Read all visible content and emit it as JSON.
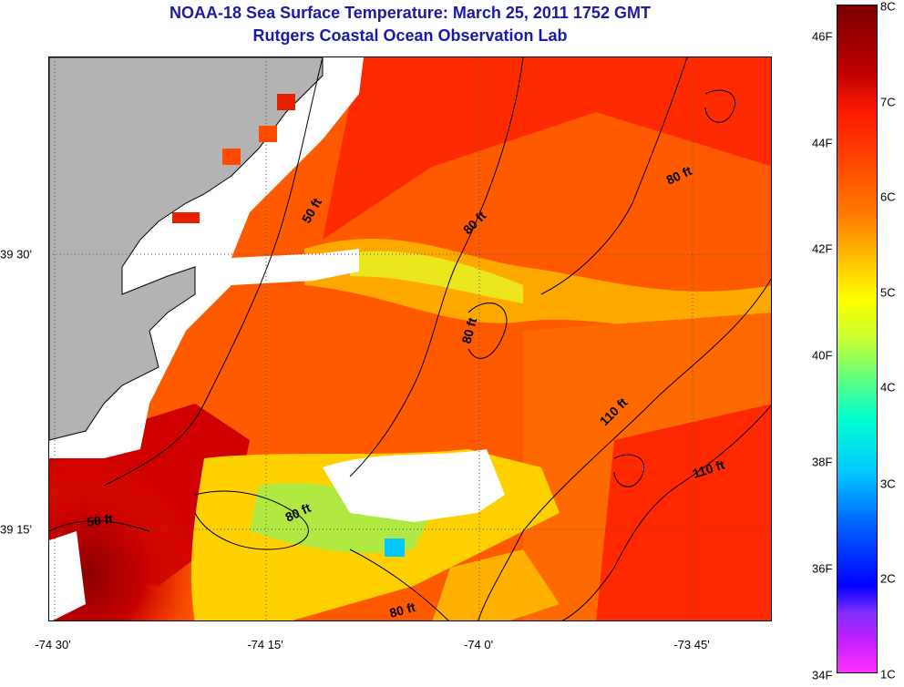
{
  "header": {
    "title": "NOAA-18 Sea Surface Temperature:  March 25, 2011 1752 GMT",
    "subtitle": "Rutgers Coastal Ocean Observation Lab"
  },
  "map": {
    "x_ticks": [
      {
        "label": "-74 30'",
        "value": -74.5
      },
      {
        "label": "-74 15'",
        "value": -74.25
      },
      {
        "label": "-74 0'",
        "value": -74.0
      },
      {
        "label": "-73 45'",
        "value": -73.75
      }
    ],
    "y_ticks": [
      {
        "label": "39 30'",
        "value": 39.5
      },
      {
        "label": "39 15'",
        "value": 39.25
      }
    ],
    "contour_labels": [
      {
        "text": "50 ft"
      },
      {
        "text": "80 ft"
      },
      {
        "text": "80 ft"
      },
      {
        "text": "80 ft"
      },
      {
        "text": "110 ft"
      },
      {
        "text": "110 ft"
      },
      {
        "text": "50 ft"
      },
      {
        "text": "80 ft"
      },
      {
        "text": "80 ft"
      }
    ],
    "land_color": "#b3b3b3",
    "no_data_color": "#ffffff"
  },
  "colorbar": {
    "fahrenheit": [
      "46F",
      "44F",
      "42F",
      "40F",
      "38F",
      "36F",
      "34F"
    ],
    "celsius": [
      "8C",
      "7C",
      "6C",
      "5C",
      "4C",
      "3C",
      "2C",
      "1C"
    ]
  }
}
